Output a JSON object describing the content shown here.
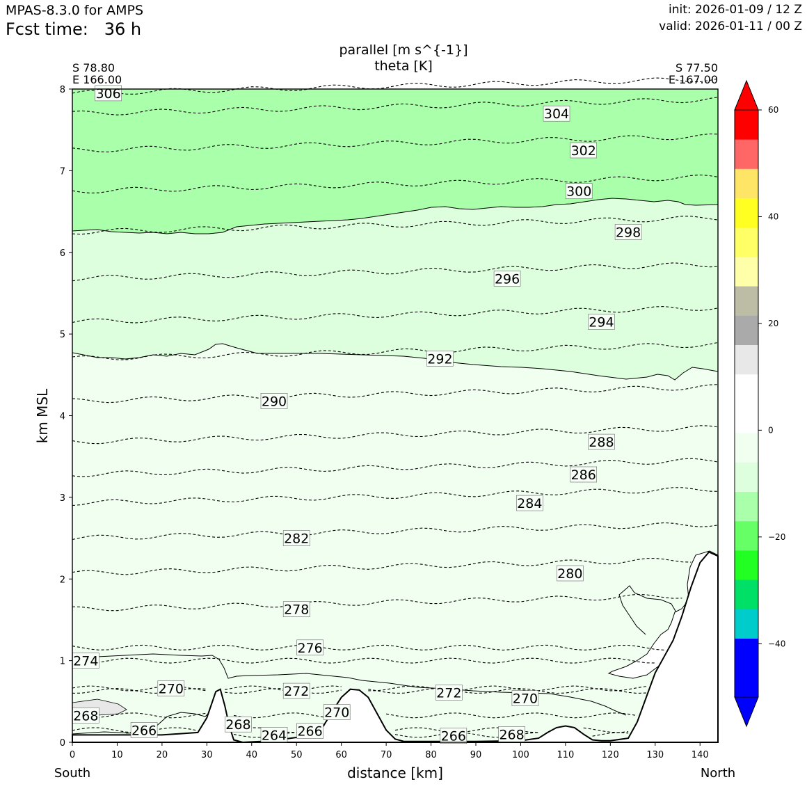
{
  "header": {
    "model": "MPAS-8.3.0 for AMPS",
    "fcst_label": "Fcst time:",
    "fcst_value": "36 h",
    "init": "init: 2026-01-09 / 12 Z",
    "valid": "valid: 2026-01-11 / 00 Z"
  },
  "chart_data": {
    "type": "cross-section",
    "title_line1": "parallel [m s^{-1}]",
    "title_line2": "theta [K]",
    "xlabel": "distance [km]",
    "ylabel": "km MSL",
    "xlim": [
      0,
      144
    ],
    "ylim": [
      0,
      8
    ],
    "x_ticks": [
      0,
      10,
      20,
      30,
      40,
      50,
      60,
      70,
      80,
      90,
      100,
      110,
      120,
      130,
      140
    ],
    "y_ticks": [
      0,
      1,
      2,
      3,
      4,
      5,
      6,
      7,
      8
    ],
    "left_endpoint": {
      "lat": "S 78.80",
      "lon": "E 166.00",
      "label": "South"
    },
    "right_endpoint": {
      "lat": "S 77.50",
      "lon": "E 167.00",
      "label": "North"
    },
    "colorbar": {
      "ticks": [
        60,
        40,
        20,
        0,
        -20,
        -40
      ],
      "tick_labels": [
        "60",
        "40",
        "20",
        "0",
        "−20",
        "−40"
      ],
      "colors": [
        "#0000ff",
        "#0000ff",
        "#00cccc",
        "#00e066",
        "#22ff22",
        "#66ff66",
        "#aaffaa",
        "#ddffdd",
        "#f0fff0",
        "#ffffff",
        "#ffffff",
        "#e8e8e8",
        "#aaaaaa",
        "#bdbda5",
        "#ffffaa",
        "#ffff66",
        "#ffff22",
        "#ffe566",
        "#ff6666",
        "#ff0000"
      ],
      "extend_low": "#0000ff",
      "extend_high": "#ff0000"
    },
    "wind_shading": [
      {
        "level": "-15 to -10",
        "color": "#aaffaa",
        "region": "above about 6.3-6.6 km"
      },
      {
        "level": "-10 to -5",
        "color": "#ddffdd",
        "region": "about 4.6 to 6.5 km"
      },
      {
        "level": "-5 to 0",
        "color": "#f0fff0",
        "region": "surface to about 4.7 km"
      }
    ],
    "theta_contours": [
      {
        "value": 306,
        "label": "306",
        "height_km": 7.95,
        "label_x_km": 8
      },
      {
        "value": 304,
        "label": "304",
        "height_km": 7.7,
        "label_x_km": 108
      },
      {
        "value": 302,
        "label": "302",
        "height_km": 7.25,
        "label_x_km": 114
      },
      {
        "value": 300,
        "label": "300",
        "height_km": 6.75,
        "label_x_km": 113
      },
      {
        "value": 298,
        "label": "298",
        "height_km": 6.25,
        "label_x_km": 124
      },
      {
        "value": 296,
        "label": "296",
        "height_km": 5.68,
        "label_x_km": 97
      },
      {
        "value": 294,
        "label": "294",
        "height_km": 5.15,
        "label_x_km": 118
      },
      {
        "value": 292,
        "label": "292",
        "height_km": 4.7,
        "label_x_km": 82
      },
      {
        "value": 290,
        "label": "290",
        "height_km": 4.18,
        "label_x_km": 45
      },
      {
        "value": 288,
        "label": "288",
        "height_km": 3.68,
        "label_x_km": 118
      },
      {
        "value": 286,
        "label": "286",
        "height_km": 3.28,
        "label_x_km": 114
      },
      {
        "value": 284,
        "label": "284",
        "height_km": 2.93,
        "label_x_km": 102
      },
      {
        "value": 282,
        "label": "282",
        "height_km": 2.5,
        "label_x_km": 50
      },
      {
        "value": 280,
        "label": "280",
        "height_km": 2.07,
        "label_x_km": 111
      },
      {
        "value": 278,
        "label": "278",
        "height_km": 1.63,
        "label_x_km": 50
      },
      {
        "value": 276,
        "label": "276",
        "height_km": 1.16,
        "label_x_km": 53
      },
      {
        "value": 274,
        "label": "274",
        "height_km": 1.0,
        "label_x_km": 3
      },
      {
        "value": 272,
        "label": "272",
        "height_km": 0.63,
        "label_x_km": 50
      },
      {
        "value": 272,
        "label": "272",
        "height_km": 0.61,
        "label_x_km": 84
      },
      {
        "value": 270,
        "label": "270",
        "height_km": 0.66,
        "label_x_km": 22
      },
      {
        "value": 270,
        "label": "270",
        "height_km": 0.37,
        "label_x_km": 59
      },
      {
        "value": 270,
        "label": "270",
        "height_km": 0.54,
        "label_x_km": 101
      },
      {
        "value": 268,
        "label": "268",
        "height_km": 0.33,
        "label_x_km": 3
      },
      {
        "value": 268,
        "label": "268",
        "height_km": 0.22,
        "label_x_km": 37
      },
      {
        "value": 268,
        "label": "268",
        "height_km": 0.1,
        "label_x_km": 98
      },
      {
        "value": 266,
        "label": "266",
        "height_km": 0.15,
        "label_x_km": 16
      },
      {
        "value": 266,
        "label": "266",
        "height_km": 0.14,
        "label_x_km": 53
      },
      {
        "value": 266,
        "label": "266",
        "height_km": 0.08,
        "label_x_km": 85
      },
      {
        "value": 264,
        "label": "264",
        "height_km": 0.09,
        "label_x_km": 45
      }
    ],
    "terrain": {
      "x_km": [
        0,
        10,
        20,
        28,
        30,
        32,
        33,
        34,
        35,
        36,
        38,
        42,
        46,
        50,
        54,
        56,
        58,
        60,
        62,
        64,
        66,
        68,
        70,
        72,
        74,
        80,
        90,
        100,
        104,
        106,
        108,
        110,
        112,
        114,
        116,
        118,
        120,
        124,
        126,
        128,
        130,
        132,
        134,
        136,
        138,
        140,
        142,
        144
      ],
      "height_km": [
        0.09,
        0.09,
        0.09,
        0.12,
        0.3,
        0.62,
        0.65,
        0.45,
        0.2,
        0.03,
        0.0,
        0.01,
        0.03,
        0.06,
        0.12,
        0.2,
        0.38,
        0.55,
        0.65,
        0.64,
        0.55,
        0.35,
        0.15,
        0.04,
        0.01,
        0.01,
        0.01,
        0.02,
        0.05,
        0.12,
        0.18,
        0.2,
        0.18,
        0.1,
        0.03,
        0.02,
        0.02,
        0.05,
        0.25,
        0.55,
        0.85,
        1.05,
        1.25,
        1.55,
        1.9,
        2.2,
        2.33,
        2.28
      ]
    }
  }
}
